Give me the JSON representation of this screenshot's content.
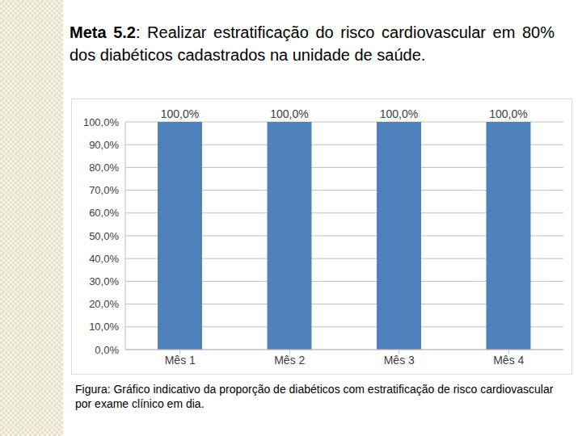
{
  "chart_data": {
    "type": "bar",
    "title": "Meta 5.2: Realizar estratificação do risco cardiovascular em 80% dos diabéticos cadastrados na unidade de saúde.",
    "caption": "Figura: Gráfico indicativo da proporção de diabéticos com estratificação de risco cardiovascular por exame clínico em dia.",
    "categories": [
      "Mês 1",
      "Mês 2",
      "Mês 3",
      "Mês 4"
    ],
    "values": [
      100,
      100,
      100,
      100
    ],
    "value_labels": [
      "100,0%",
      "100,0%",
      "100,0%",
      "100,0%"
    ],
    "data_labels": true,
    "color": "#4f81bd",
    "ylim": [
      0,
      100
    ],
    "yticks": [
      {
        "value": 0,
        "label": "0,0%"
      },
      {
        "value": 10,
        "label": "10,0%"
      },
      {
        "value": 20,
        "label": "20,0%"
      },
      {
        "value": 30,
        "label": "30,0%"
      },
      {
        "value": 40,
        "label": "40,0%"
      },
      {
        "value": 50,
        "label": "50,0%"
      },
      {
        "value": 60,
        "label": "60,0%"
      },
      {
        "value": 70,
        "label": "70,0%"
      },
      {
        "value": 80,
        "label": "80,0%"
      },
      {
        "value": 90,
        "label": "90,0%"
      },
      {
        "value": 100,
        "label": "100,0%"
      }
    ],
    "grid": true
  }
}
